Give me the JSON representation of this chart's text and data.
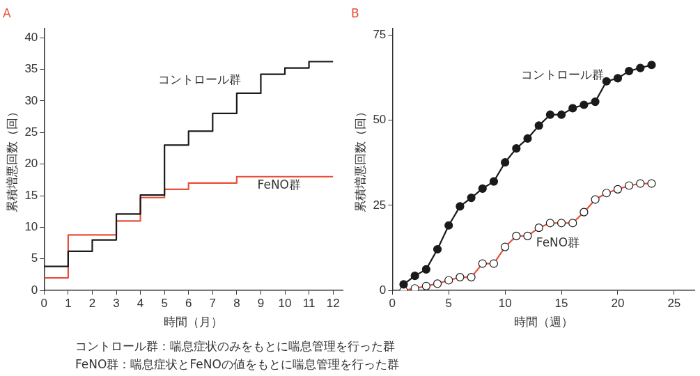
{
  "chart_data": [
    {
      "type": "step",
      "title": "A",
      "xlabel": "時間（月）",
      "ylabel": "累積増悪回数（回）",
      "x": [
        0,
        1,
        2,
        3,
        4,
        5,
        6,
        7,
        8,
        9,
        10,
        11,
        12
      ],
      "xlim": [
        0,
        12.4
      ],
      "xticks": [
        0,
        1,
        2,
        3,
        4,
        5,
        6,
        7,
        8,
        9,
        10,
        11,
        12
      ],
      "ylim": [
        0,
        41.5
      ],
      "yticks": [
        0,
        5,
        10,
        15,
        20,
        25,
        30,
        35,
        40
      ],
      "series": [
        {
          "name": "コントロール群",
          "color": "#1a1a1a",
          "values": [
            3.8,
            6.2,
            8,
            12.1,
            15.1,
            23,
            25.2,
            28,
            31.2,
            34.2,
            35.2,
            36.2,
            36.2
          ]
        },
        {
          "name": "FeNO群",
          "color": "#e8503a",
          "values": [
            2,
            8.8,
            8.8,
            11,
            14.7,
            16,
            17,
            17,
            18,
            18,
            18,
            18,
            18
          ]
        }
      ],
      "annotations": [
        "コントロール群：喘息症状のみをもとに喘息管理を行った群",
        "FeNO群：喘息症状とFeNOの値をもとに喘息管理を行った群"
      ]
    },
    {
      "type": "line",
      "title": "B",
      "xlabel": "時間（週）",
      "ylabel": "累積増悪回数（回）",
      "marker": "circle",
      "x": [
        1,
        2,
        3,
        4,
        5,
        6,
        7,
        8,
        9,
        10,
        11,
        12,
        13,
        14,
        15,
        16,
        17,
        18,
        19,
        20,
        21,
        22,
        23
      ],
      "xlim": [
        0,
        26.8
      ],
      "xticks": [
        0,
        5,
        10,
        15,
        20,
        25
      ],
      "ylim": [
        0,
        77
      ],
      "yticks": [
        0,
        25,
        50,
        75
      ],
      "series": [
        {
          "name": "コントロール群",
          "color": "#1a1a1a",
          "values": [
            1.8,
            4.3,
            6.2,
            12.1,
            19.1,
            24.7,
            27.2,
            29.9,
            32,
            37.6,
            41.7,
            44.6,
            48.4,
            51.6,
            51.6,
            53.5,
            54.5,
            55.4,
            61.4,
            62.3,
            64.4,
            65.3,
            66.2
          ]
        },
        {
          "name": "FeNO群",
          "color": "#e8503a",
          "values": [
            0,
            0.6,
            1.3,
            2,
            3,
            3.9,
            3.9,
            7.9,
            7.9,
            12.8,
            16,
            16,
            18.4,
            19.8,
            19.8,
            19.8,
            23,
            26.7,
            28.6,
            29.7,
            30.8,
            31.4,
            31.4
          ]
        }
      ]
    }
  ]
}
